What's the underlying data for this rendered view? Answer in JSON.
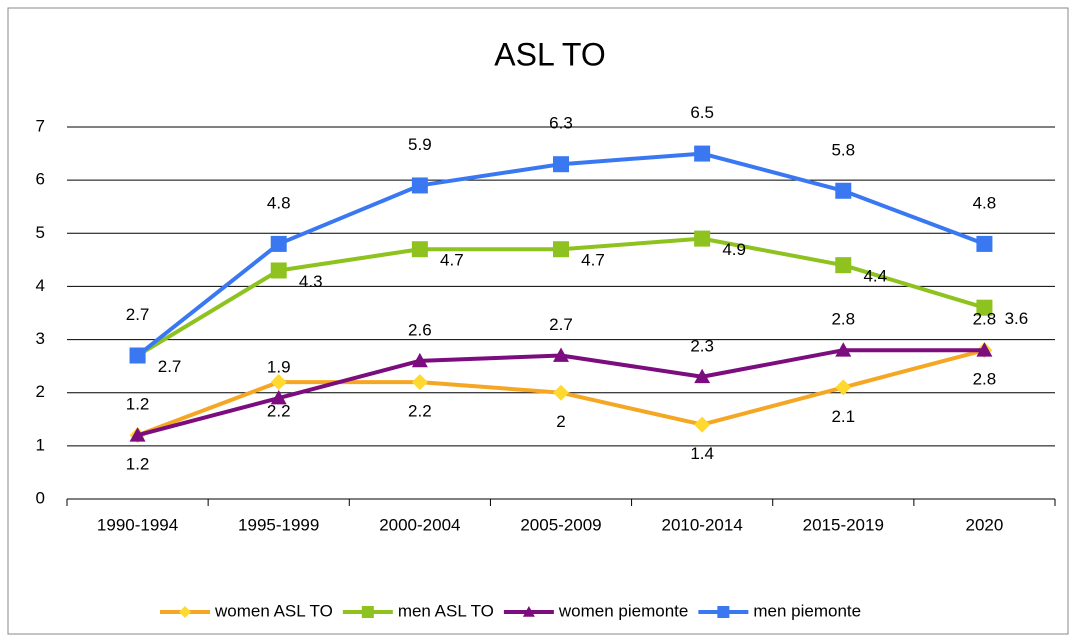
{
  "chart_data": {
    "type": "line",
    "title": "ASL TO",
    "categories": [
      "1990-1994",
      "1995-1999",
      "2000-2004",
      "2005-2009",
      "2010-2014",
      "2015-2019",
      "2020"
    ],
    "series": [
      {
        "name": "women ASL TO",
        "color": "#f5a623",
        "marker": "diamond",
        "marker_color": "#ffd92f",
        "values": [
          1.2,
          2.2,
          2.2,
          2,
          1.4,
          2.1,
          2.8
        ]
      },
      {
        "name": "men ASL TO",
        "color": "#8dc21f",
        "marker": "square",
        "marker_color": "#8dc21f",
        "values": [
          2.7,
          4.3,
          4.7,
          4.7,
          4.9,
          4.4,
          3.6
        ]
      },
      {
        "name": "women piemonte",
        "color": "#7b0d7e",
        "marker": "triangle",
        "marker_color": "#7b0d7e",
        "values": [
          1.2,
          1.9,
          2.6,
          2.7,
          2.3,
          2.8,
          2.8
        ]
      },
      {
        "name": "men piemonte",
        "color": "#3a78f2",
        "marker": "square",
        "marker_color": "#3a78f2",
        "values": [
          2.7,
          4.8,
          5.9,
          6.3,
          6.5,
          5.8,
          4.8
        ]
      }
    ],
    "ylim": [
      0,
      7
    ],
    "yticks": [
      0,
      1,
      2,
      3,
      4,
      5,
      6,
      7
    ],
    "grid": true,
    "legend": "bottom"
  }
}
